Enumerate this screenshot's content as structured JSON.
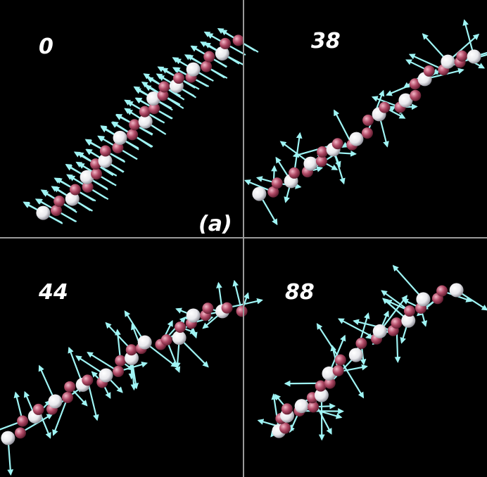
{
  "panels": [
    {
      "label": "0"
    },
    {
      "label": "38"
    },
    {
      "label": "44"
    },
    {
      "label": "88"
    }
  ],
  "panel_tag": "(a)"
}
